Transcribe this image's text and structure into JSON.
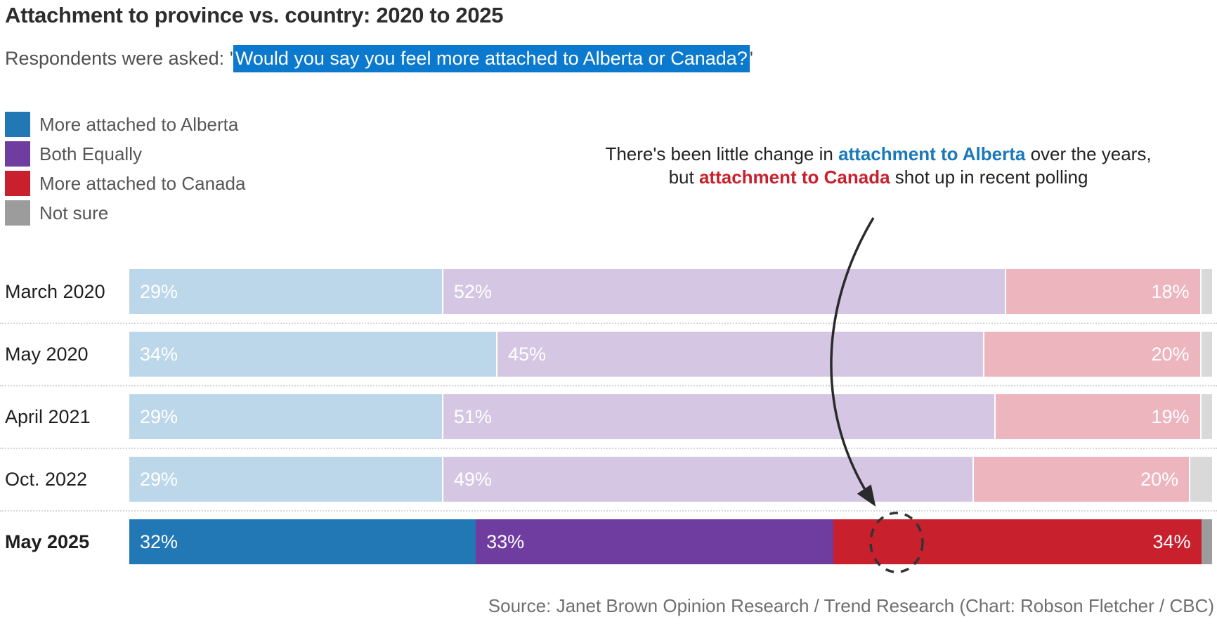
{
  "title": "Attachment to province vs. country: 2020 to 2025",
  "subtitle": {
    "prefix": "Respondents were asked: '",
    "highlight": "Would you say you feel more attached to Alberta or Canada?",
    "suffix": "'"
  },
  "legend": [
    {
      "label": "More attached to Alberta",
      "color_key": "alberta_full"
    },
    {
      "label": "Both Equally",
      "color_key": "both_full"
    },
    {
      "label": "More attached to Canada",
      "color_key": "canada_full"
    },
    {
      "label": "Not sure",
      "color_key": "notsure_full"
    }
  ],
  "annotation": {
    "parts": [
      {
        "text": "There's been little change in ",
        "style": "plain"
      },
      {
        "text": "attachment to Alberta",
        "style": "alberta"
      },
      {
        "text": " over the years, but ",
        "style": "plain"
      },
      {
        "text": "attachment to Canada",
        "style": "canada"
      },
      {
        "text": " shot up in recent polling",
        "style": "plain"
      }
    ]
  },
  "chart_data": {
    "type": "bar",
    "orientation": "horizontal",
    "stacked": true,
    "xlim": [
      0,
      100
    ],
    "grid": false,
    "legend_position": "top-left",
    "categories": [
      "March 2020",
      "May 2020",
      "April 2021",
      "Oct. 2022",
      "May 2025"
    ],
    "series": [
      {
        "name": "More attached to Alberta",
        "values": [
          29,
          34,
          29,
          29,
          32
        ]
      },
      {
        "name": "Both Equally",
        "values": [
          52,
          45,
          51,
          49,
          33
        ]
      },
      {
        "name": "More attached to Canada",
        "values": [
          18,
          20,
          19,
          20,
          34
        ]
      },
      {
        "name": "Not sure",
        "values": [
          1,
          1,
          1,
          2,
          1
        ]
      }
    ],
    "value_label_format": "{v}%",
    "labeled_series": [
      0,
      1,
      2
    ],
    "emphasized_category": "May 2025"
  },
  "source": "Source: Janet Brown Opinion Research / Trend Research (Chart: Robson Fletcher / CBC)",
  "colors": {
    "alberta_full": "#2278b5",
    "both_full": "#6f3d9f",
    "canada_full": "#c9202e",
    "notsure_full": "#9c9c9c",
    "alberta_muted": "#bdd7ea",
    "both_muted": "#d5c7e4",
    "canada_muted": "#edb5bd",
    "notsure_muted": "#d9d9d9",
    "highlight": "#0b79cd",
    "annotation_alberta": "#1a79b8",
    "annotation_canada": "#c9202e",
    "arrow": "#2a2a2a"
  }
}
